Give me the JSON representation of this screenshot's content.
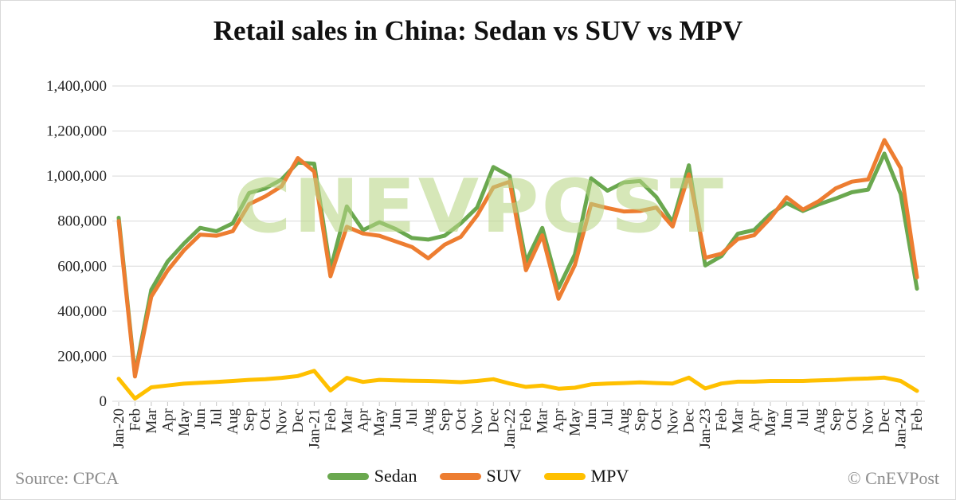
{
  "chart_data": {
    "type": "line",
    "title": "Retail sales in China: Sedan vs SUV vs MPV",
    "watermark": "CNEVPOST",
    "source": "Source: CPCA",
    "copyright": "© CnEVPost",
    "grid": "horizontal",
    "legend_position": "bottom-center",
    "colors": {
      "gridline": "#d9d9d9",
      "tick": "#c4c4c4",
      "axis_text": "#262626",
      "footer_text": "#8c8c8c",
      "watermark": "#b8d684"
    },
    "y_axis": {
      "min": 0,
      "max": 1400000,
      "tick_interval": 200000,
      "tick_labels": [
        "0",
        "200,000",
        "400,000",
        "600,000",
        "800,000",
        "1,000,000",
        "1,200,000",
        "1,400,000"
      ]
    },
    "x_labels": [
      "Jan-20",
      "Feb",
      "Mar",
      "Apr",
      "May",
      "Jun",
      "Jul",
      "Aug",
      "Sep",
      "Oct",
      "Nov",
      "Dec",
      "Jan-21",
      "Feb",
      "Mar",
      "Apr",
      "May",
      "Jun",
      "Jul",
      "Aug",
      "Sep",
      "Oct",
      "Nov",
      "Dec",
      "Jan-22",
      "Feb",
      "Mar",
      "Apr",
      "May",
      "Jun",
      "Jul",
      "Aug",
      "Sep",
      "Oct",
      "Nov",
      "Dec",
      "Jan-23",
      "Feb",
      "Mar",
      "Apr",
      "May",
      "Jun",
      "Jul",
      "Aug",
      "Sep",
      "Oct",
      "Nov",
      "Dec",
      "Jan-24",
      "Feb"
    ],
    "series": [
      {
        "name": "Sedan",
        "color": "#6aa84f",
        "values": [
          815000,
          120000,
          495000,
          620000,
          700000,
          770000,
          755000,
          790000,
          925000,
          945000,
          985000,
          1060000,
          1055000,
          585000,
          865000,
          760000,
          795000,
          765000,
          725000,
          718000,
          735000,
          790000,
          860000,
          1040000,
          1000000,
          620000,
          770000,
          503000,
          652000,
          990000,
          935000,
          972000,
          978000,
          907000,
          795000,
          1048000,
          603000,
          645000,
          744000,
          760000,
          831000,
          880000,
          845000,
          875000,
          900000,
          928000,
          940000,
          1100000,
          920000,
          500000
        ]
      },
      {
        "name": "SUV",
        "color": "#ed7d31",
        "values": [
          800000,
          110000,
          465000,
          580000,
          670000,
          740000,
          735000,
          755000,
          875000,
          910000,
          955000,
          1080000,
          1020000,
          555000,
          775000,
          745000,
          735000,
          710000,
          685000,
          635000,
          695000,
          730000,
          825000,
          950000,
          975000,
          582000,
          737000,
          455000,
          605000,
          876000,
          858000,
          843000,
          845000,
          860000,
          776000,
          1008000,
          637000,
          655000,
          720000,
          737000,
          813000,
          906000,
          851000,
          890000,
          945000,
          975000,
          985000,
          1160000,
          1035000,
          550000
        ]
      },
      {
        "name": "MPV",
        "color": "#ffc000",
        "values": [
          100000,
          12000,
          62000,
          70000,
          78000,
          82000,
          86000,
          90000,
          95000,
          98000,
          104000,
          112000,
          135000,
          48000,
          104000,
          86000,
          95000,
          93000,
          91000,
          90000,
          88000,
          85000,
          90000,
          98000,
          79000,
          64000,
          70000,
          56000,
          60000,
          75000,
          79000,
          81000,
          84000,
          81000,
          79000,
          105000,
          57000,
          79000,
          87000,
          87000,
          90000,
          90000,
          90000,
          93000,
          95000,
          99000,
          101000,
          105000,
          90000,
          46000
        ]
      }
    ]
  }
}
